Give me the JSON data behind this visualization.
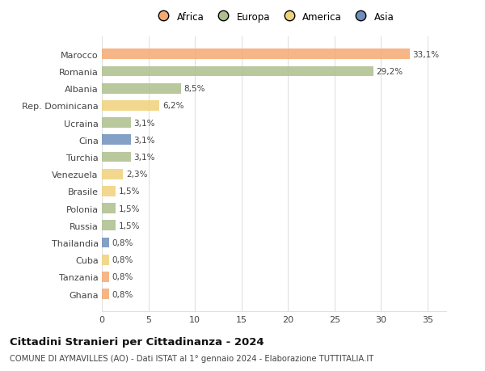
{
  "categories": [
    "Marocco",
    "Romania",
    "Albania",
    "Rep. Dominicana",
    "Ucraina",
    "Cina",
    "Turchia",
    "Venezuela",
    "Brasile",
    "Polonia",
    "Russia",
    "Thailandia",
    "Cuba",
    "Tanzania",
    "Ghana"
  ],
  "values": [
    33.1,
    29.2,
    8.5,
    6.2,
    3.1,
    3.1,
    3.1,
    2.3,
    1.5,
    1.5,
    1.5,
    0.8,
    0.8,
    0.8,
    0.8
  ],
  "labels": [
    "33,1%",
    "29,2%",
    "8,5%",
    "6,2%",
    "3,1%",
    "3,1%",
    "3,1%",
    "2,3%",
    "1,5%",
    "1,5%",
    "1,5%",
    "0,8%",
    "0,8%",
    "0,8%",
    "0,8%"
  ],
  "colors": [
    "#F5AA72",
    "#ADBF8C",
    "#ADBF8C",
    "#F0D27A",
    "#ADBF8C",
    "#6E8FBC",
    "#ADBF8C",
    "#F0D27A",
    "#F0D27A",
    "#ADBF8C",
    "#ADBF8C",
    "#6E8FBC",
    "#F0D27A",
    "#F5AA72",
    "#F5AA72"
  ],
  "legend_labels": [
    "Africa",
    "Europa",
    "America",
    "Asia"
  ],
  "legend_colors": [
    "#F5AA72",
    "#ADBF8C",
    "#F0D27A",
    "#6E8FBC"
  ],
  "title": "Cittadini Stranieri per Cittadinanza - 2024",
  "subtitle": "COMUNE DI AYMAVILLES (AO) - Dati ISTAT al 1° gennaio 2024 - Elaborazione TUTTITALIA.IT",
  "xlim": [
    0,
    37
  ],
  "xticks": [
    0,
    5,
    10,
    15,
    20,
    25,
    30,
    35
  ],
  "bg_color": "#ffffff",
  "grid_color": "#e0e0e0",
  "bar_height": 0.6
}
